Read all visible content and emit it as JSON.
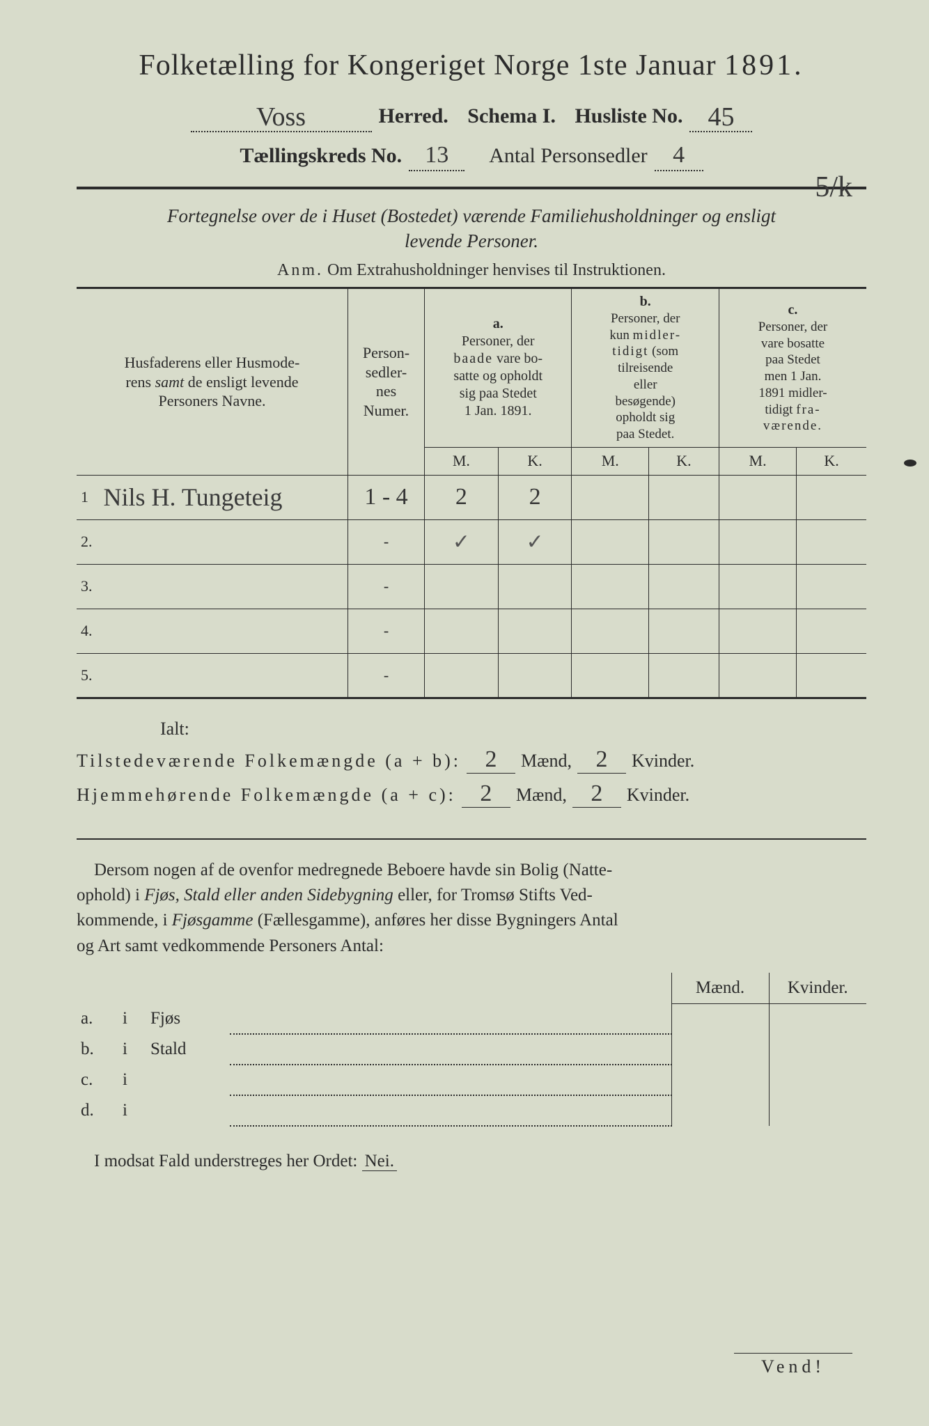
{
  "colors": {
    "paper": "#d8dccb",
    "ink": "#2b2b2b",
    "hand": "#3a3a3a"
  },
  "title": {
    "main": "Folketælling for Kongeriget Norge 1ste Januar",
    "year": "1891.",
    "herred_hand": "Voss",
    "herred_label": "Herred.",
    "schema_label": "Schema I.",
    "husliste_label": "Husliste No.",
    "husliste_no": "45",
    "margin_note": "5/k",
    "kreds_label": "Tællingskreds No.",
    "kreds_no": "13",
    "antal_label": "Antal Personsedler",
    "antal_no": "4"
  },
  "caption": {
    "line1": "Fortegnelse over de i Huset (Bostedet) værende Familiehusholdninger og ensligt",
    "line2": "levende Personer.",
    "anm_label": "Anm.",
    "anm_text": "Om Extrahusholdninger henvises til Instruktionen."
  },
  "table": {
    "head_name": "Husfaderens eller Husmoderens samt de ensligt levende Personers Navne.",
    "head_num": "Person-\nsedler-\nnes\nNumer.",
    "col_a_label": "a.",
    "col_a_text": "Personer, der baade vare bosatte og opholdt sig paa Stedet 1 Jan. 1891.",
    "col_b_label": "b.",
    "col_b_text": "Personer, der kun midler-tidigt (som tilreisende eller besøgende) opholdt sig paa Stedet.",
    "col_c_label": "c.",
    "col_c_text": "Personer, der vare bosatte paa Stedet men 1 Jan. 1891 midler-tidigt fra-værende.",
    "m": "M.",
    "k": "K.",
    "rows": [
      {
        "n": "1",
        "name": "Nils H. Tungeteig",
        "num": "1 - 4",
        "a_m": "2",
        "a_k": "2",
        "b_m": "",
        "b_k": "",
        "c_m": "",
        "c_k": ""
      },
      {
        "n": "2.",
        "name": "",
        "num": "-",
        "a_m": "✓",
        "a_k": "✓",
        "b_m": "",
        "b_k": "",
        "c_m": "",
        "c_k": ""
      },
      {
        "n": "3.",
        "name": "",
        "num": "-",
        "a_m": "",
        "a_k": "",
        "b_m": "",
        "b_k": "",
        "c_m": "",
        "c_k": ""
      },
      {
        "n": "4.",
        "name": "",
        "num": "-",
        "a_m": "",
        "a_k": "",
        "b_m": "",
        "b_k": "",
        "c_m": "",
        "c_k": ""
      },
      {
        "n": "5.",
        "name": "",
        "num": "-",
        "a_m": "",
        "a_k": "",
        "b_m": "",
        "b_k": "",
        "c_m": "",
        "c_k": ""
      }
    ]
  },
  "totals": {
    "ialt": "Ialt:",
    "line1_label": "Tilstedeværende Folkemængde (a + b):",
    "line2_label": "Hjemmehørende Folkemængde (a + c):",
    "maend": "Mænd,",
    "kvinder": "Kvinder.",
    "l1_m": "2",
    "l1_k": "2",
    "l2_m": "2",
    "l2_k": "2"
  },
  "para": "Dersom nogen af de ovenfor medregnede Beboere havde sin Bolig (Natte-ophold) i Fjøs, Stald eller anden Sidebygning eller, for Tromsø Stifts Ved-kommende, i Fjøsgamme (Fællesgamme), anføres her disse Bygningers Antal og Art samt vedkommende Personers Antal:",
  "bottom": {
    "maend": "Mænd.",
    "kvinder": "Kvinder.",
    "rows": [
      {
        "label_a": "a.",
        "label_i": "i",
        "text": "Fjøs"
      },
      {
        "label_a": "b.",
        "label_i": "i",
        "text": "Stald"
      },
      {
        "label_a": "c.",
        "label_i": "i",
        "text": ""
      },
      {
        "label_a": "d.",
        "label_i": "i",
        "text": ""
      }
    ]
  },
  "nei": {
    "text": "I modsat Fald understreges her Ordet:",
    "word": "Nei."
  },
  "vend": "Vend!"
}
